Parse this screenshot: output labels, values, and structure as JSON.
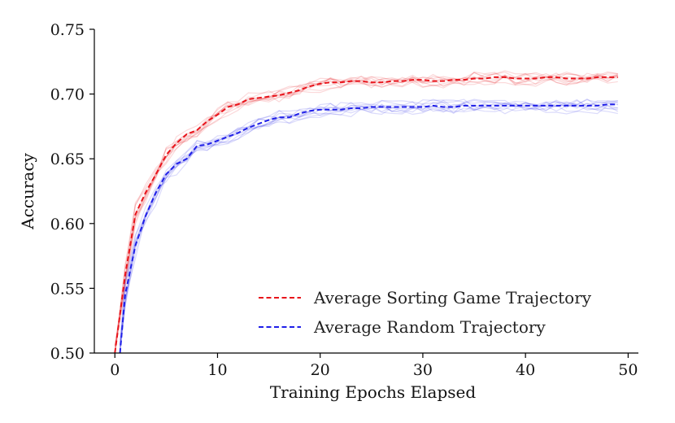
{
  "chart_data": {
    "type": "line",
    "title": "",
    "xlabel": "Training Epochs Elapsed",
    "ylabel": "Accuracy",
    "xlim": [
      -2,
      51
    ],
    "ylim": [
      0.5,
      0.75
    ],
    "xticks": [
      0,
      10,
      20,
      30,
      40,
      50
    ],
    "xtick_labels": [
      "0",
      "10",
      "20",
      "30",
      "40",
      "50"
    ],
    "yticks": [
      0.5,
      0.55,
      0.6,
      0.65,
      0.7,
      0.75
    ],
    "ytick_labels": [
      "0.50",
      "0.55",
      "0.60",
      "0.65",
      "0.70",
      "0.75"
    ],
    "grid": false,
    "legend_position": "bottom-right",
    "individual_runs_per_group": 10,
    "series": [
      {
        "name": "Average Sorting Game Trajectory",
        "color": "#e8141b",
        "style": "dashed",
        "x": [
          0,
          1,
          2,
          3,
          4,
          5,
          6,
          7,
          8,
          9,
          10,
          11,
          12,
          13,
          14,
          15,
          16,
          17,
          18,
          19,
          20,
          21,
          22,
          23,
          24,
          25,
          26,
          27,
          28,
          29,
          30,
          31,
          32,
          33,
          34,
          35,
          36,
          37,
          38,
          39,
          40,
          41,
          42,
          43,
          44,
          45,
          46,
          47,
          48,
          49
        ],
        "values": [
          0.5,
          0.56,
          0.607,
          0.624,
          0.638,
          0.653,
          0.662,
          0.669,
          0.672,
          0.679,
          0.684,
          0.69,
          0.692,
          0.696,
          0.697,
          0.698,
          0.699,
          0.701,
          0.703,
          0.706,
          0.708,
          0.709,
          0.709,
          0.71,
          0.71,
          0.709,
          0.709,
          0.71,
          0.71,
          0.711,
          0.711,
          0.71,
          0.71,
          0.711,
          0.711,
          0.712,
          0.712,
          0.713,
          0.713,
          0.712,
          0.712,
          0.712,
          0.713,
          0.713,
          0.712,
          0.712,
          0.712,
          0.713,
          0.713,
          0.713
        ]
      },
      {
        "name": "Average Random Trajectory",
        "color": "#1f1fe8",
        "style": "dashed",
        "x": [
          0.5,
          1,
          2,
          3,
          4,
          5,
          6,
          7,
          8,
          9,
          10,
          11,
          12,
          13,
          14,
          15,
          16,
          17,
          18,
          19,
          20,
          21,
          22,
          23,
          24,
          25,
          26,
          27,
          28,
          29,
          30,
          31,
          32,
          33,
          34,
          35,
          36,
          37,
          38,
          39,
          40,
          41,
          42,
          43,
          44,
          45,
          46,
          47,
          48,
          49
        ],
        "values": [
          0.5,
          0.545,
          0.583,
          0.606,
          0.624,
          0.638,
          0.646,
          0.65,
          0.66,
          0.661,
          0.664,
          0.667,
          0.67,
          0.674,
          0.677,
          0.68,
          0.682,
          0.682,
          0.685,
          0.687,
          0.688,
          0.688,
          0.688,
          0.689,
          0.689,
          0.69,
          0.69,
          0.69,
          0.69,
          0.69,
          0.69,
          0.691,
          0.69,
          0.69,
          0.691,
          0.691,
          0.691,
          0.691,
          0.691,
          0.691,
          0.691,
          0.691,
          0.691,
          0.691,
          0.691,
          0.691,
          0.691,
          0.691,
          0.692,
          0.692
        ]
      }
    ]
  }
}
